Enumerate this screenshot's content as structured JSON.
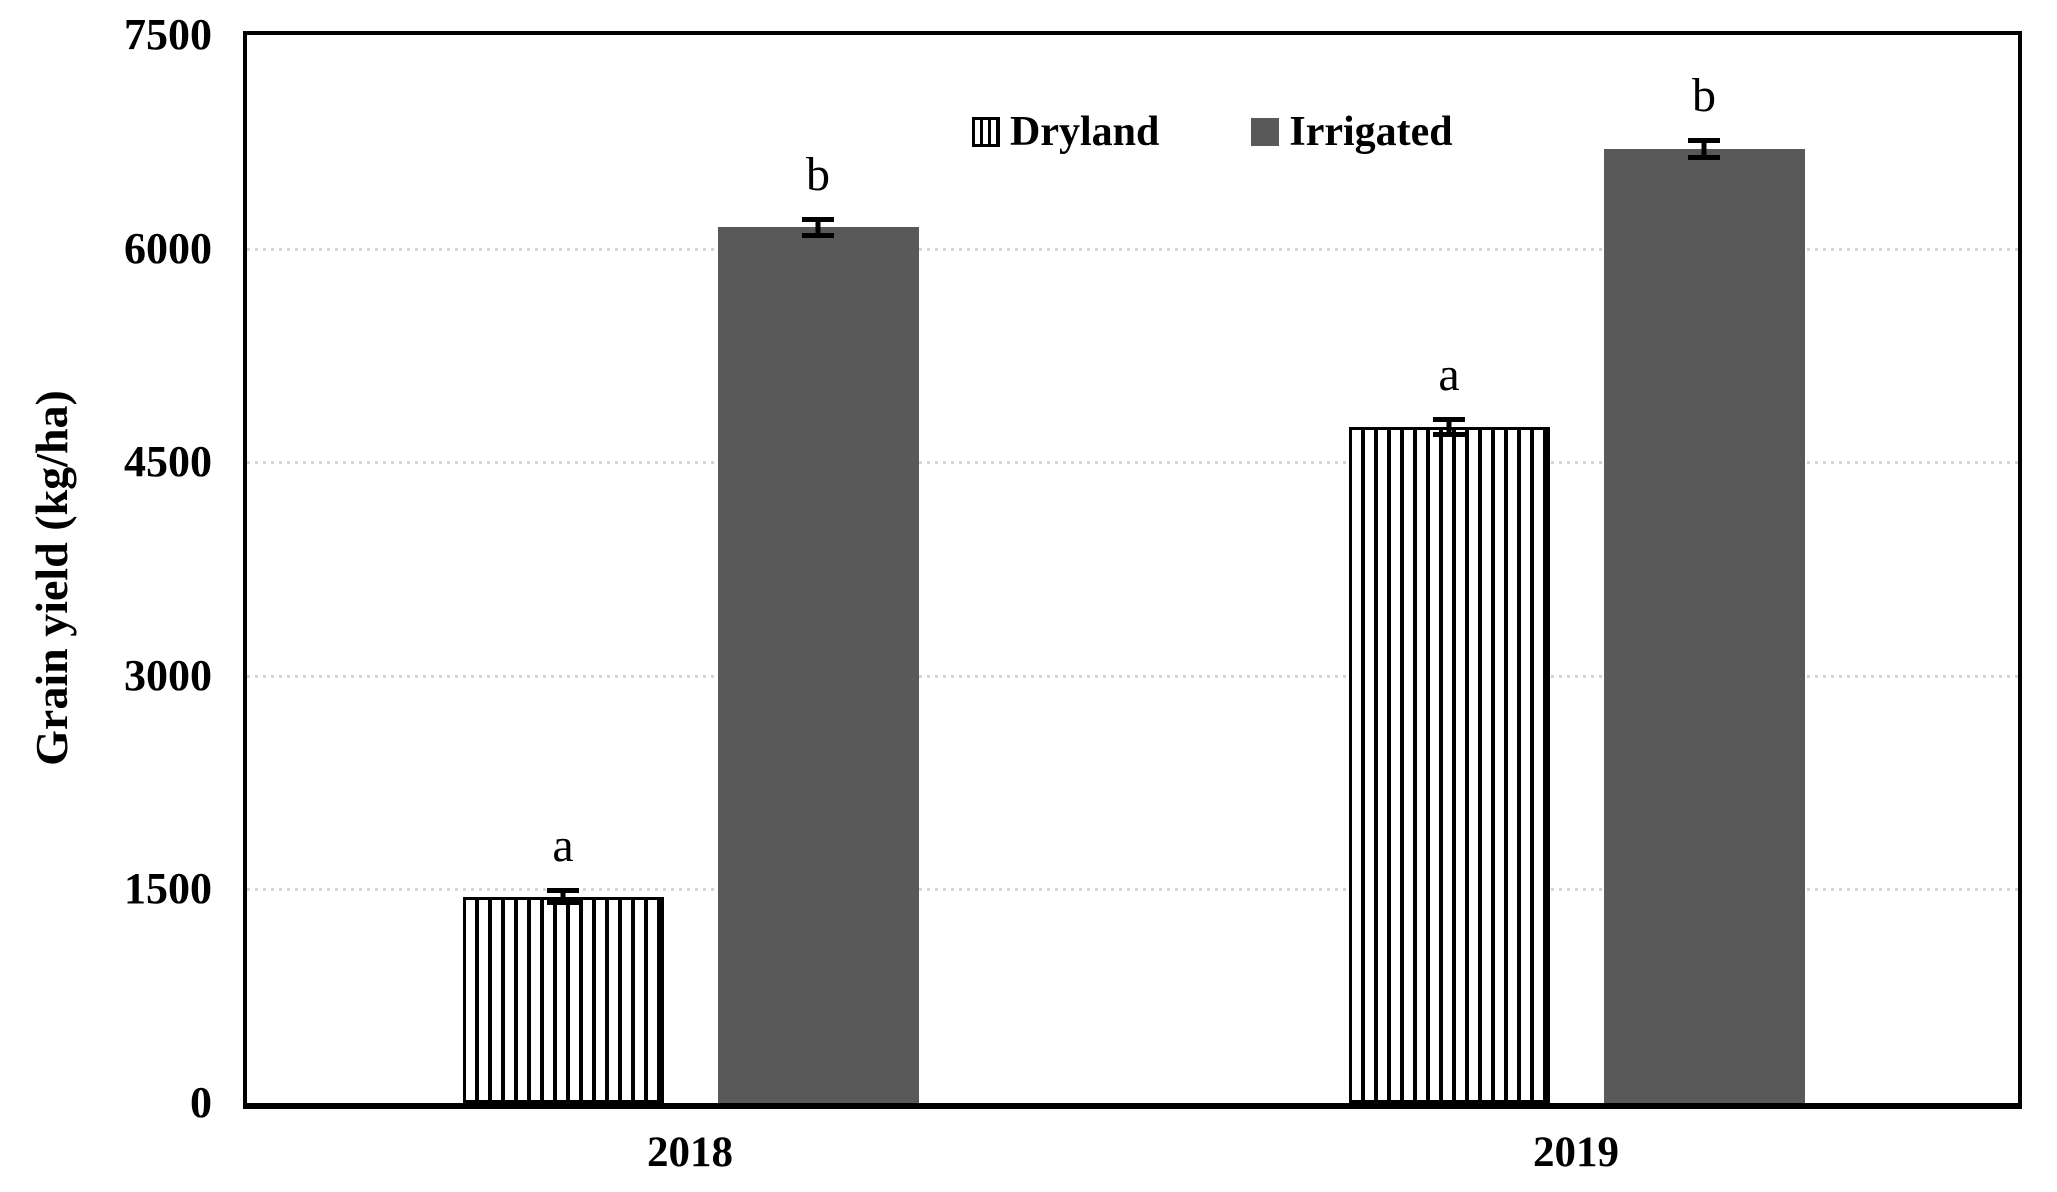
{
  "chart_data": {
    "type": "bar",
    "title": "",
    "xlabel": "",
    "ylabel": "Grain yield (kg/ha)",
    "categories": [
      "2018",
      "2019"
    ],
    "series": [
      {
        "name": "Dryland",
        "fill": "white-with-black-vertical-stripes",
        "values": [
          1450,
          4750
        ],
        "errors": [
          60,
          70
        ],
        "sig_letters": [
          "a",
          "a"
        ]
      },
      {
        "name": "Irrigated",
        "color": "#595959",
        "values": [
          6150,
          6700
        ],
        "errors": [
          75,
          75
        ],
        "sig_letters": [
          "b",
          "b"
        ]
      }
    ],
    "ylim": [
      0,
      7500
    ],
    "yticks": [
      0,
      1500,
      3000,
      4500,
      6000,
      7500
    ],
    "grid": "horizontal-dotted",
    "gridline_color": "#d5d5d5",
    "axis_color": "#000000",
    "error_bars": true,
    "legend_position": "top-center"
  }
}
